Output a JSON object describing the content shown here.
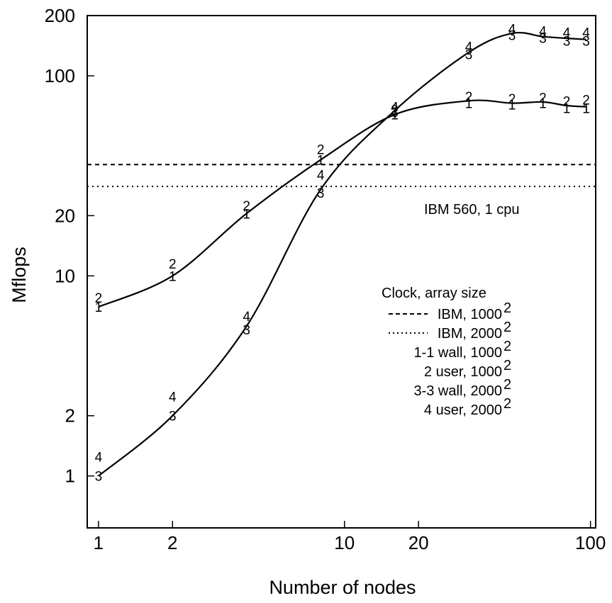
{
  "chart_data": {
    "type": "line",
    "xlabel": "Number of nodes",
    "ylabel": "Mflops",
    "x_scale": "log",
    "y_scale": "log",
    "xlim": [
      0.9,
      105
    ],
    "ylim": [
      0.55,
      200
    ],
    "x_ticks": [
      1,
      2,
      10,
      20,
      100
    ],
    "y_ticks": [
      1,
      2,
      10,
      20,
      100,
      200
    ],
    "x_tick_labels": [
      "1",
      "2",
      "10",
      "20",
      "100"
    ],
    "y_tick_labels": [
      "1",
      "2",
      "10",
      "20",
      "100",
      "200"
    ],
    "grid": false,
    "annotation": "IBM 560, 1 cpu",
    "legend": {
      "title": "Clock, array size",
      "placement": "right",
      "entries": [
        {
          "label": "IBM, 1000",
          "sup": "2"
        },
        {
          "label": "IBM, 2000",
          "sup": "2"
        },
        {
          "label": "1-1 wall, 1000",
          "sup": "2"
        },
        {
          "label": "2 user, 1000",
          "sup": "2"
        },
        {
          "label": "3-3 wall, 2000",
          "sup": "2"
        },
        {
          "label": "4 user, 2000",
          "sup": "2"
        }
      ]
    },
    "reference_lines": [
      {
        "name": "IBM, 1000²",
        "y": 36,
        "style": "dashed"
      },
      {
        "name": "IBM, 2000²",
        "y": 28,
        "style": "dotted"
      }
    ],
    "x": [
      1,
      2,
      4,
      8,
      16,
      32,
      48,
      64,
      80,
      96
    ],
    "series": [
      {
        "marker": "1",
        "values": [
          7.0,
          10.0,
          20.5,
          38.0,
          64.0,
          73.0,
          72.0,
          73.0,
          69.0,
          69.0
        ]
      },
      {
        "marker": "2",
        "values": [
          7.8,
          11.5,
          22.5,
          43.0,
          68.0,
          79.0,
          77.0,
          78.0,
          75.0,
          76.0
        ]
      },
      {
        "marker": "3",
        "values": [
          1.0,
          2.0,
          5.4,
          26.0,
          66.0,
          128.0,
          160.0,
          155.0,
          150.0,
          150.0
        ]
      },
      {
        "marker": "4",
        "values": [
          1.25,
          2.5,
          6.3,
          32.0,
          70.0,
          140.0,
          172.0,
          168.0,
          165.0,
          165.0
        ]
      }
    ],
    "fitted_curves": [
      {
        "applies_to": "1000²",
        "x": [
          1,
          2,
          4,
          8,
          16,
          32,
          48,
          64,
          80,
          96
        ],
        "y": [
          7.0,
          10.0,
          20.5,
          38.0,
          64.0,
          75.0,
          73.0,
          74.0,
          71.0,
          70.0
        ]
      },
      {
        "applies_to": "2000²",
        "x": [
          1,
          2,
          4,
          8,
          16,
          32,
          48,
          64,
          80,
          96
        ],
        "y": [
          1.0,
          2.0,
          5.6,
          27.0,
          67.0,
          131.0,
          163.0,
          157.0,
          154.0,
          152.0
        ]
      }
    ]
  }
}
